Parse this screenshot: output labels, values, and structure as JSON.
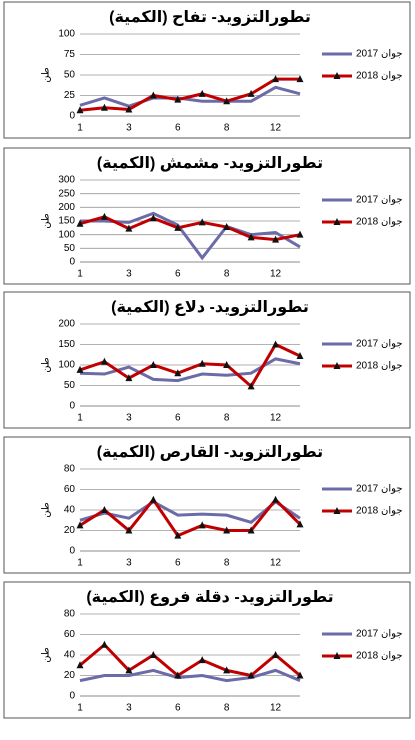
{
  "chart_data": [
    {
      "type": "line",
      "title": "تطورالتزويد- تفاح (الكمية)",
      "ylabel": "طن",
      "categories": [
        "1",
        null,
        "3",
        null,
        "6",
        null,
        "8",
        null,
        "12",
        null
      ],
      "series": [
        {
          "name": "جوان 2017",
          "color": "#6b6ba8",
          "values": [
            13,
            22,
            12,
            22,
            22,
            18,
            18,
            18,
            35,
            27
          ]
        },
        {
          "name": "جوان 2018",
          "color": "#c00000",
          "marker": "triangle",
          "values": [
            7,
            10,
            8,
            25,
            20,
            27,
            18,
            27,
            45,
            45
          ]
        }
      ],
      "ylim": [
        0,
        100
      ],
      "yticks": [
        0,
        25,
        50,
        75,
        100
      ],
      "grid": true
    },
    {
      "type": "line",
      "title": "تطورالتزويد- مشمش (الكمية)",
      "ylabel": "طن",
      "categories": [
        "1",
        null,
        "3",
        null,
        "6",
        null,
        "8",
        null,
        "12",
        null
      ],
      "series": [
        {
          "name": "جوان 2017",
          "color": "#6b6ba8",
          "values": [
            150,
            150,
            145,
            178,
            135,
            15,
            130,
            100,
            108,
            55
          ]
        },
        {
          "name": "جوان 2018",
          "color": "#c00000",
          "marker": "triangle",
          "values": [
            140,
            165,
            122,
            160,
            125,
            145,
            128,
            90,
            82,
            100
          ]
        }
      ],
      "ylim": [
        0,
        300
      ],
      "yticks": [
        0,
        50,
        100,
        150,
        200,
        250,
        300
      ],
      "grid": true
    },
    {
      "type": "line",
      "title": "تطورالتزويد- دلاع (الكمية)",
      "ylabel": "طن",
      "categories": [
        "1",
        null,
        "3",
        null,
        "6",
        null,
        "8",
        null,
        "12",
        null
      ],
      "series": [
        {
          "name": "جوان 2017",
          "color": "#6b6ba8",
          "values": [
            80,
            78,
            95,
            65,
            62,
            78,
            75,
            80,
            115,
            103
          ]
        },
        {
          "name": "جوان 2018",
          "color": "#c00000",
          "marker": "triangle",
          "values": [
            88,
            108,
            68,
            100,
            80,
            103,
            100,
            48,
            150,
            122
          ]
        }
      ],
      "ylim": [
        0,
        200
      ],
      "yticks": [
        0,
        50,
        100,
        150,
        200
      ],
      "grid": true
    },
    {
      "type": "line",
      "title": "تطورالتزويد- القارص (الكمية)",
      "ylabel": "طن",
      "categories": [
        "1",
        null,
        "3",
        null,
        "6",
        null,
        "8",
        null,
        "12",
        null
      ],
      "series": [
        {
          "name": "جوان 2017",
          "color": "#6b6ba8",
          "values": [
            30,
            37,
            32,
            48,
            35,
            36,
            35,
            28,
            48,
            32
          ]
        },
        {
          "name": "جوان 2018",
          "color": "#c00000",
          "marker": "triangle",
          "values": [
            25,
            40,
            20,
            50,
            15,
            25,
            20,
            20,
            50,
            26
          ]
        }
      ],
      "ylim": [
        0,
        80
      ],
      "yticks": [
        0,
        20,
        40,
        60,
        80
      ],
      "grid": true
    },
    {
      "type": "line",
      "title": "تطورالتزويد- دقلة فروع (الكمية)",
      "ylabel": "طن",
      "categories": [
        "1",
        null,
        "3",
        null,
        "6",
        null,
        "8",
        null,
        "12",
        null
      ],
      "series": [
        {
          "name": "جوان 2017",
          "color": "#6b6ba8",
          "values": [
            15,
            20,
            20,
            25,
            18,
            20,
            15,
            18,
            25,
            15
          ]
        },
        {
          "name": "جوان 2018",
          "color": "#c00000",
          "marker": "triangle",
          "values": [
            30,
            50,
            25,
            40,
            20,
            35,
            25,
            20,
            40,
            20
          ]
        }
      ],
      "ylim": [
        0,
        80
      ],
      "yticks": [
        0,
        20,
        40,
        60,
        80
      ],
      "grid": true
    }
  ]
}
